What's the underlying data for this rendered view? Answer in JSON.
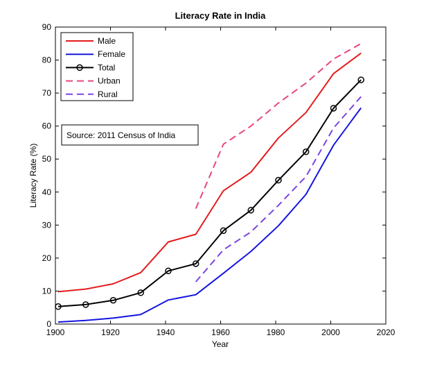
{
  "chart_data": {
    "type": "line",
    "title": "Literacy Rate in India",
    "xlabel": "Year",
    "ylabel": "Literacy Rate (%)",
    "xlim": [
      1900,
      2020
    ],
    "ylim": [
      0,
      90
    ],
    "xticks": [
      1900,
      1920,
      1940,
      1960,
      1980,
      2000,
      2020
    ],
    "yticks": [
      0,
      10,
      20,
      30,
      40,
      50,
      60,
      70,
      80,
      90
    ],
    "grid": false,
    "legend_position": "top-left",
    "annotation": "Source: 2011 Census of India",
    "series": [
      {
        "name": "Male",
        "color": "#e41a1c",
        "style": "solid",
        "marker": "none",
        "x": [
          1901,
          1911,
          1921,
          1931,
          1941,
          1951,
          1961,
          1971,
          1981,
          1991,
          2001,
          2011
        ],
        "values": [
          9.8,
          10.6,
          12.2,
          15.6,
          24.9,
          27.2,
          40.4,
          46.0,
          56.4,
          64.1,
          75.9,
          82.1
        ]
      },
      {
        "name": "Female",
        "color": "#1414e0",
        "style": "solid",
        "marker": "none",
        "x": [
          1901,
          1911,
          1921,
          1931,
          1941,
          1951,
          1961,
          1971,
          1981,
          1991,
          2001,
          2011
        ],
        "values": [
          0.6,
          1.1,
          1.8,
          2.9,
          7.3,
          8.9,
          15.4,
          22.0,
          29.8,
          39.3,
          54.2,
          65.5
        ]
      },
      {
        "name": "Total",
        "color": "#000000",
        "style": "solid",
        "marker": "circle",
        "x": [
          1901,
          1911,
          1921,
          1931,
          1941,
          1951,
          1961,
          1971,
          1981,
          1991,
          2001,
          2011
        ],
        "values": [
          5.3,
          5.9,
          7.2,
          9.5,
          16.1,
          18.3,
          28.3,
          34.5,
          43.6,
          52.2,
          65.4,
          74.0
        ]
      },
      {
        "name": "Urban",
        "color": "#e8457d",
        "style": "dashed",
        "marker": "none",
        "x": [
          1951,
          1961,
          1971,
          1981,
          1991,
          2001,
          2011
        ],
        "values": [
          35.0,
          54.5,
          60.0,
          67.0,
          73.0,
          80.3,
          85.0
        ]
      },
      {
        "name": "Rural",
        "color": "#7b44e0",
        "style": "dashed",
        "marker": "none",
        "x": [
          1951,
          1961,
          1971,
          1981,
          1991,
          2001,
          2011
        ],
        "values": [
          12.8,
          22.5,
          27.9,
          36.0,
          44.7,
          59.4,
          68.9
        ]
      }
    ]
  }
}
